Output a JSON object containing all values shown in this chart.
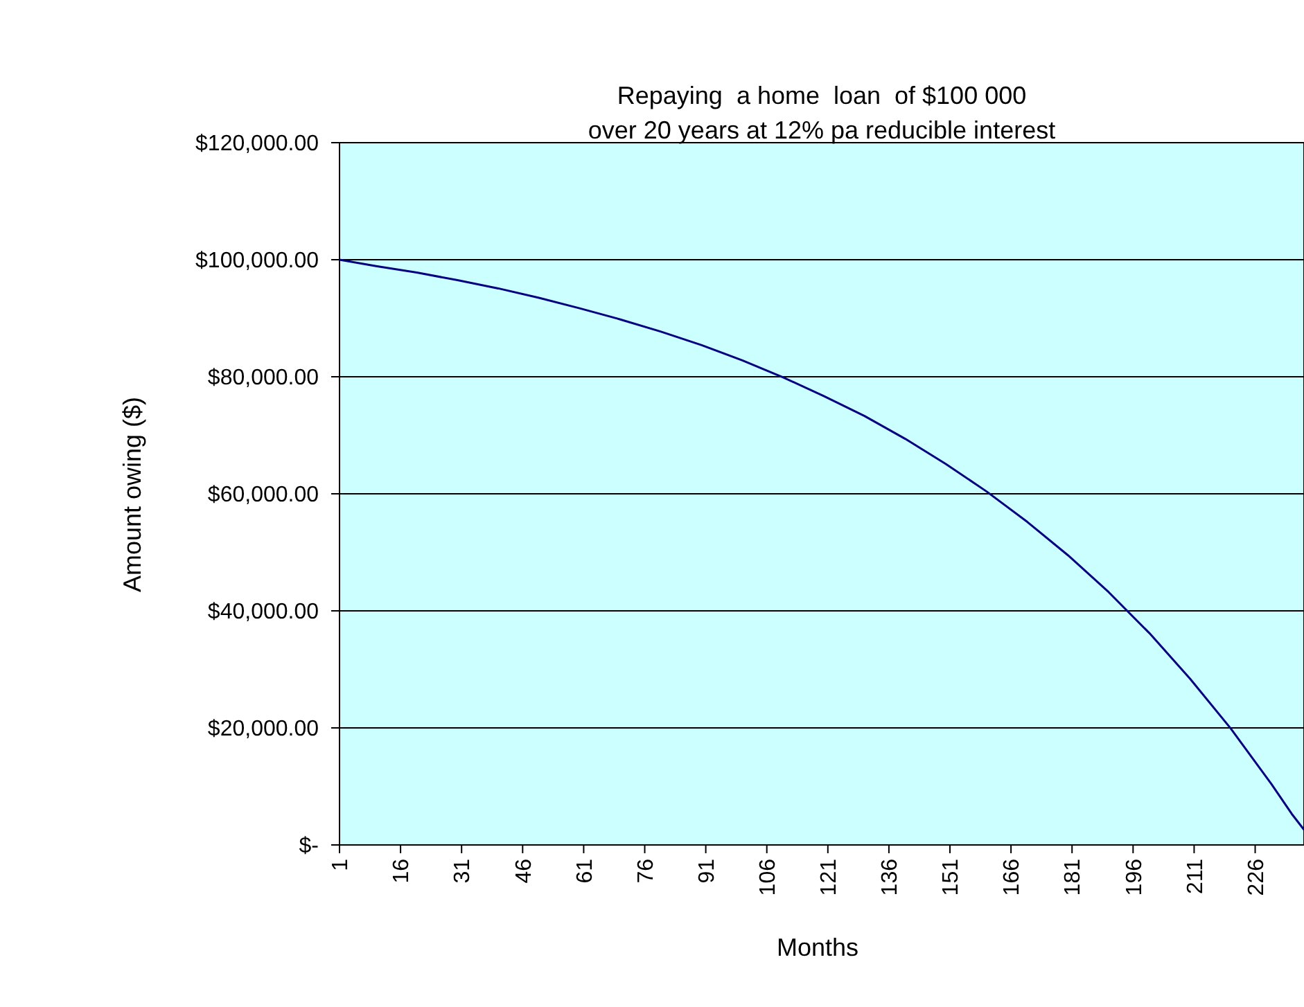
{
  "chart_data": {
    "type": "line",
    "title": "Repaying  a home  loan  of $100 000\nover 20 years at 12% pa reducible interest",
    "xlabel": "Months",
    "ylabel": "Amount owing ($)",
    "x": [
      1,
      10,
      20,
      30,
      40,
      50,
      60,
      70,
      80,
      90,
      100,
      110,
      120,
      130,
      140,
      150,
      160,
      170,
      180,
      190,
      200,
      210,
      220,
      230,
      235,
      238
    ],
    "series": [
      {
        "color": "#000080",
        "values": [
          100000,
          98900,
          97800,
          96500,
          95100,
          93500,
          91700,
          89800,
          87700,
          85400,
          82800,
          79900,
          76700,
          73300,
          69400,
          65100,
          60400,
          55200,
          49500,
          43200,
          36200,
          28400,
          19900,
          10400,
          5300,
          2600
        ]
      }
    ],
    "xlim": [
      1,
      238
    ],
    "xticks": [
      1,
      16,
      31,
      46,
      61,
      76,
      91,
      106,
      121,
      136,
      151,
      166,
      181,
      196,
      211,
      226
    ],
    "ylim": [
      0,
      120000
    ],
    "yticks": [
      {
        "value": 0,
        "label": "$-"
      },
      {
        "value": 20000,
        "label": "$20,000.00"
      },
      {
        "value": 40000,
        "label": "$40,000.00"
      },
      {
        "value": 60000,
        "label": "$60,000.00"
      },
      {
        "value": 80000,
        "label": "$80,000.00"
      },
      {
        "value": 100000,
        "label": "$100,000.00"
      },
      {
        "value": 120000,
        "label": "$120,000.00"
      }
    ],
    "grid": "y",
    "marker": "none",
    "line_style": "solid"
  }
}
